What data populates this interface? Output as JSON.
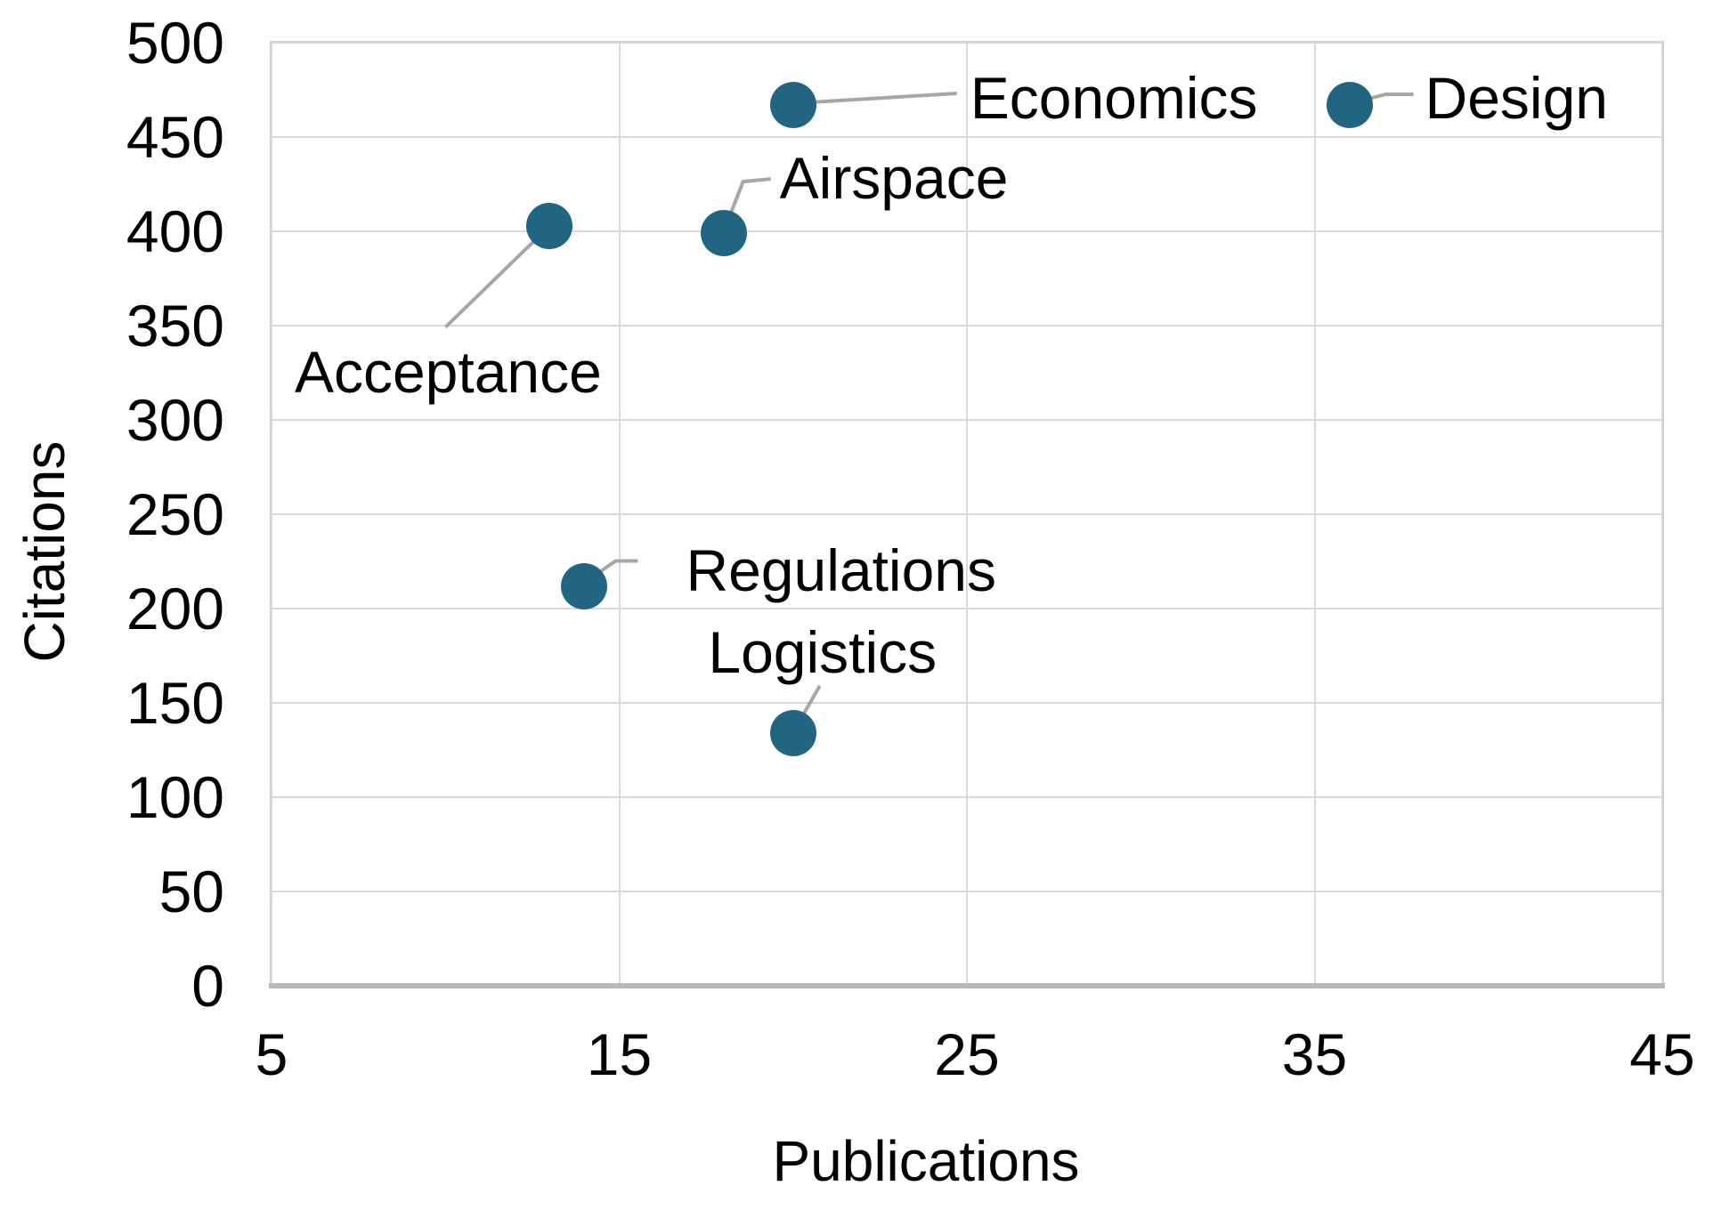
{
  "figure": {
    "background": "#ffffff"
  },
  "chart_data": {
    "type": "scatter",
    "title": "",
    "xlabel": "Publications",
    "ylabel": "Citations",
    "xlim": [
      5,
      45
    ],
    "ylim": [
      0,
      500
    ],
    "x_ticks": [
      "5",
      "15",
      "25",
      "35",
      "45"
    ],
    "y_ticks": [
      "0",
      "50",
      "100",
      "150",
      "200",
      "250",
      "300",
      "350",
      "400",
      "450",
      "500"
    ],
    "grid": true,
    "legend": "none",
    "point_color": "#216582",
    "leader_line_color": "#a6a6a6",
    "gridline_color": "#d9d9d9",
    "axis_line_color": "#b9b9b9",
    "text_color": "#000000",
    "points": [
      {
        "label": "Acceptance",
        "x": 13,
        "y": 403,
        "label_side": "below-left"
      },
      {
        "label": "Airspace",
        "x": 18,
        "y": 399,
        "label_side": "above-right"
      },
      {
        "label": "Economics",
        "x": 20,
        "y": 467,
        "label_side": "right"
      },
      {
        "label": "Design",
        "x": 36,
        "y": 467,
        "label_side": "right"
      },
      {
        "label": "Regulations",
        "x": 14,
        "y": 212,
        "label_side": "right"
      },
      {
        "label": "Logistics",
        "x": 20,
        "y": 134,
        "label_side": "above"
      }
    ]
  }
}
